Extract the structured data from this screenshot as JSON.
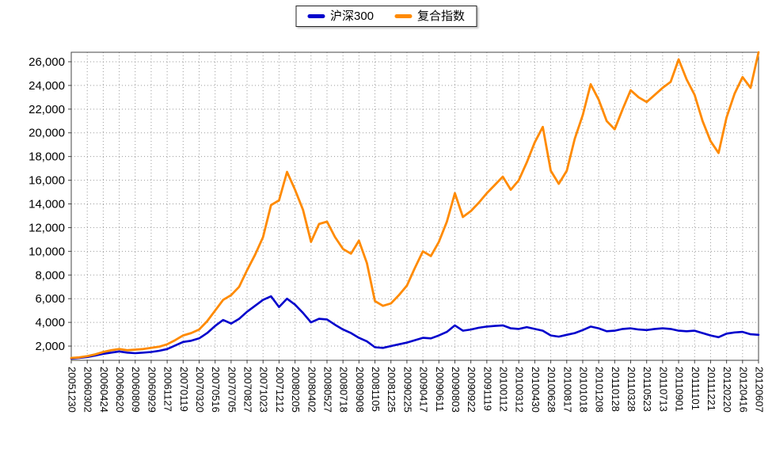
{
  "legend": {
    "items": [
      {
        "label": "沪深300",
        "color": "#0000cc"
      },
      {
        "label": "复合指数",
        "color": "#ff8a00"
      }
    ]
  },
  "chart_data": {
    "type": "line",
    "title": "",
    "xlabel": "",
    "ylabel": "",
    "grid": "dotted",
    "legend_position": "top-center",
    "ylim": [
      800,
      26800
    ],
    "y_ticks": [
      2000,
      4000,
      6000,
      8000,
      10000,
      12000,
      14000,
      16000,
      18000,
      20000,
      22000,
      24000,
      26000
    ],
    "y_tick_labels": [
      "2,000",
      "4,000",
      "6,000",
      "8,000",
      "10,000",
      "12,000",
      "14,000",
      "16,000",
      "18,000",
      "20,000",
      "22,000",
      "24,000",
      "26,000"
    ],
    "x_tick_labels": [
      "20051230",
      "20060302",
      "20060424",
      "20060620",
      "20060809",
      "20060929",
      "20061127",
      "20070119",
      "20070320",
      "20070516",
      "20070705",
      "20070827",
      "20071023",
      "20071212",
      "20080205",
      "20080402",
      "20080527",
      "20080718",
      "20080908",
      "20081105",
      "20081225",
      "20090225",
      "20090417",
      "20090611",
      "20090803",
      "20090922",
      "20091119",
      "20100112",
      "20100312",
      "20100430",
      "20100628",
      "20100817",
      "20101018",
      "20101208",
      "20110128",
      "20110328",
      "20110523",
      "20110713",
      "20110901",
      "20111101",
      "20111221",
      "20120220",
      "20120416",
      "20120607"
    ],
    "sampling_note": "values are sampled at each x tick date and at the midpoint between consecutive ticks (2 samples per tick interval)",
    "series": [
      {
        "name": "沪深300",
        "color": "#0000cc",
        "values": [
          950,
          1000,
          1080,
          1200,
          1350,
          1450,
          1550,
          1450,
          1400,
          1450,
          1500,
          1600,
          1750,
          2050,
          2350,
          2450,
          2650,
          3100,
          3700,
          4200,
          3900,
          4300,
          4900,
          5400,
          5900,
          6200,
          5300,
          6000,
          5500,
          4800,
          4000,
          4300,
          4250,
          3800,
          3400,
          3100,
          2700,
          2400,
          1900,
          1850,
          2000,
          2150,
          2300,
          2500,
          2700,
          2650,
          2900,
          3200,
          3750,
          3300,
          3400,
          3550,
          3650,
          3700,
          3750,
          3500,
          3450,
          3600,
          3450,
          3300,
          2900,
          2800,
          2950,
          3100,
          3350,
          3650,
          3500,
          3250,
          3300,
          3450,
          3500,
          3400,
          3350,
          3450,
          3500,
          3450,
          3300,
          3250,
          3300,
          3100,
          2900,
          2750,
          3050,
          3150,
          3200,
          3000,
          2950
        ]
      },
      {
        "name": "复合指数",
        "color": "#ff8a00",
        "values": [
          1000,
          1050,
          1150,
          1300,
          1500,
          1650,
          1750,
          1650,
          1700,
          1750,
          1850,
          1950,
          2150,
          2500,
          2900,
          3100,
          3400,
          4100,
          5000,
          5900,
          6300,
          7000,
          8400,
          9700,
          11200,
          13900,
          14300,
          16700,
          15200,
          13500,
          10800,
          12300,
          12500,
          11200,
          10200,
          9800,
          10900,
          9000,
          5800,
          5400,
          5600,
          6300,
          7100,
          8600,
          10000,
          9600,
          10800,
          12500,
          14900,
          12900,
          13400,
          14100,
          14900,
          15600,
          16300,
          15200,
          16000,
          17500,
          19200,
          20500,
          16800,
          15700,
          16800,
          19500,
          21500,
          24100,
          22800,
          21000,
          20300,
          22000,
          23600,
          23000,
          22600,
          23200,
          23800,
          24300,
          26200,
          24500,
          23200,
          21000,
          19300,
          18300,
          21300,
          23300,
          24700,
          23800,
          26800
        ]
      }
    ]
  }
}
